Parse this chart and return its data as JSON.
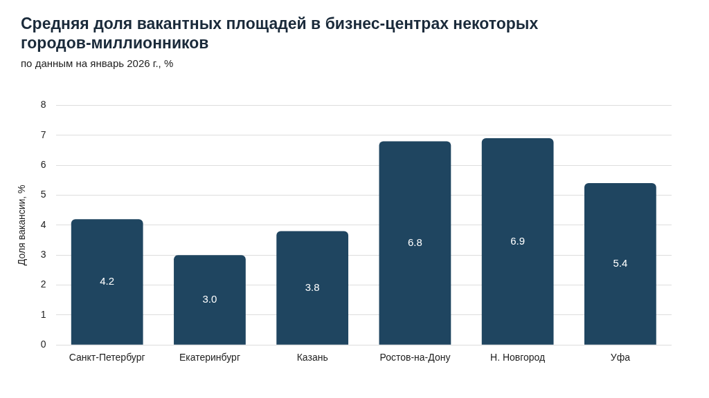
{
  "chart_data": {
    "type": "bar",
    "title": "Средняя доля вакантных площадей в бизнес-центрах некоторых городов-миллионников",
    "subtitle": "по данным на январь 2026 г., %",
    "ylabel": "Доля вакансии, %",
    "categories": [
      "Санкт-Петербург",
      "Екатеринбург",
      "Казань",
      "Ростов-на-Дону",
      "Н. Новгород",
      "Уфа"
    ],
    "values": [
      4.2,
      3.0,
      3.8,
      6.8,
      6.9,
      5.4
    ],
    "color": "#1f4560",
    "ylim": [
      0,
      8
    ],
    "yticks": [
      0,
      1,
      2,
      3,
      4,
      5,
      6,
      7,
      8
    ],
    "grid": "y",
    "legend": false,
    "value_labels": [
      "4.2",
      "3.0",
      "3.8",
      "6.8",
      "6.9",
      "5.4"
    ]
  }
}
